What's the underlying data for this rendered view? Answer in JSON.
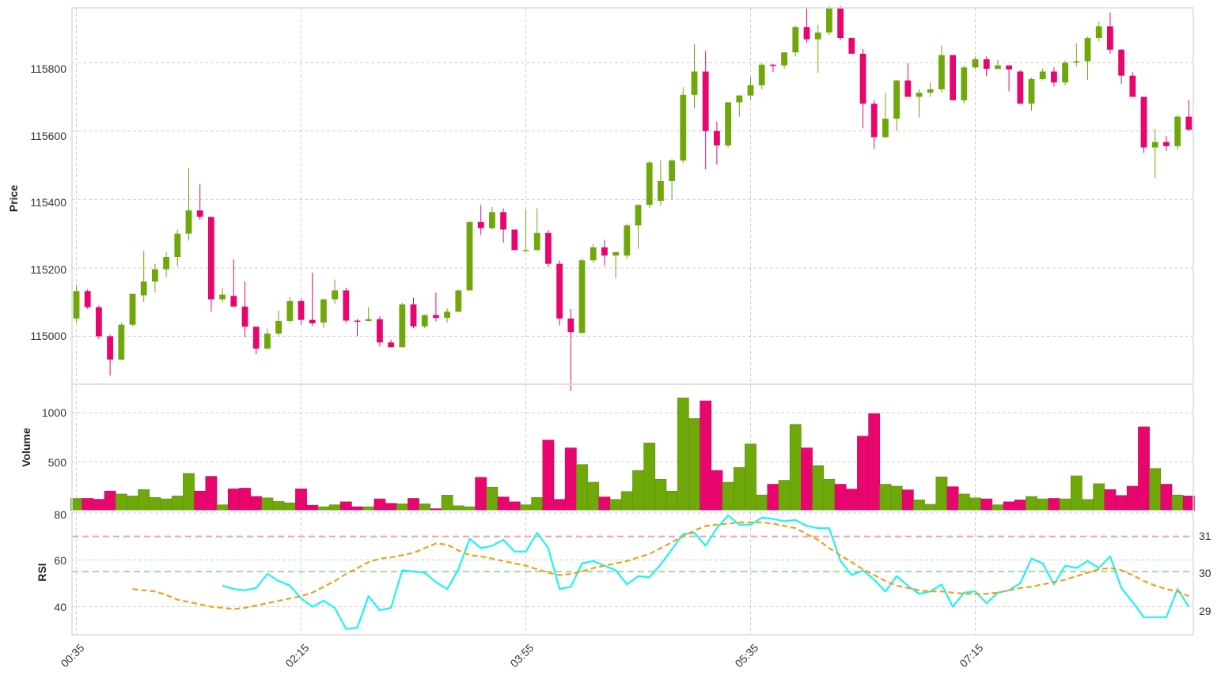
{
  "chart_data": [
    {
      "type": "candlestick",
      "ylabel": "Price",
      "yticks": [
        115000,
        115200,
        115400,
        115600,
        115800
      ],
      "ylim": [
        114860,
        115960
      ],
      "grid": true,
      "up_color": "#6fa80a",
      "down_color": "#e8066e",
      "ohlc": [
        [
          115052,
          115150,
          115040,
          115132
        ],
        [
          115132,
          115138,
          115080,
          115085
        ],
        [
          115085,
          115090,
          114992,
          115000
        ],
        [
          115000,
          115005,
          114885,
          114932
        ],
        [
          114932,
          115040,
          114930,
          115034
        ],
        [
          115034,
          115124,
          115030,
          115124
        ],
        [
          115120,
          115250,
          115100,
          115160
        ],
        [
          115160,
          115212,
          115128,
          115196
        ],
        [
          115196,
          115245,
          115174,
          115232
        ],
        [
          115232,
          115312,
          115205,
          115300
        ],
        [
          115300,
          115492,
          115280,
          115368
        ],
        [
          115368,
          115444,
          115340,
          115349
        ],
        [
          115349,
          115349,
          115072,
          115108
        ],
        [
          115108,
          115142,
          115100,
          115122
        ],
        [
          115118,
          115225,
          115085,
          115087
        ],
        [
          115087,
          115160,
          114998,
          115028
        ],
        [
          115028,
          115028,
          114948,
          114964
        ],
        [
          114964,
          115023,
          114962,
          115008
        ],
        [
          115008,
          115075,
          115002,
          115045
        ],
        [
          115045,
          115114,
          115040,
          115103
        ],
        [
          115103,
          115110,
          115034,
          115048
        ],
        [
          115048,
          115186,
          115030,
          115038
        ],
        [
          115040,
          115110,
          115025,
          115108
        ],
        [
          115108,
          115166,
          115095,
          115134
        ],
        [
          115134,
          115142,
          115040,
          115046
        ],
        [
          115046,
          115050,
          115000,
          115045
        ],
        [
          115045,
          115085,
          115044,
          115050
        ],
        [
          115050,
          115058,
          114970,
          114982
        ],
        [
          114982,
          114990,
          114968,
          114968
        ],
        [
          114968,
          115098,
          114968,
          115093
        ],
        [
          115093,
          115112,
          115024,
          115029
        ],
        [
          115029,
          115064,
          115024,
          115062
        ],
        [
          115062,
          115128,
          115044,
          115054
        ],
        [
          115054,
          115082,
          115040,
          115072
        ],
        [
          115072,
          115136,
          115070,
          115134
        ],
        [
          115134,
          115336,
          115134,
          115334
        ],
        [
          115334,
          115384,
          115296,
          115316
        ],
        [
          115316,
          115378,
          115312,
          115363
        ],
        [
          115363,
          115374,
          115274,
          115312
        ],
        [
          115312,
          115312,
          115252,
          115252
        ],
        [
          115252,
          115370,
          115250,
          115252
        ],
        [
          115252,
          115374,
          115250,
          115302
        ],
        [
          115302,
          115310,
          115202,
          115212
        ],
        [
          115212,
          115222,
          115032,
          115052
        ],
        [
          115052,
          115080,
          114840,
          115012
        ],
        [
          115010,
          115228,
          115008,
          115222
        ],
        [
          115222,
          115270,
          115214,
          115260
        ],
        [
          115260,
          115282,
          115206,
          115236
        ],
        [
          115236,
          115246,
          115170,
          115246
        ],
        [
          115236,
          115330,
          115226,
          115324
        ],
        [
          115324,
          115386,
          115256,
          115384
        ],
        [
          115384,
          115512,
          115376,
          115508
        ],
        [
          115396,
          115514,
          115382,
          115454
        ],
        [
          115454,
          115518,
          115400,
          115514
        ],
        [
          115514,
          115728,
          115506,
          115706
        ],
        [
          115706,
          115854,
          115666,
          115774
        ],
        [
          115774,
          115834,
          115488,
          115600
        ],
        [
          115600,
          115628,
          115502,
          115558
        ],
        [
          115558,
          115684,
          115552,
          115684
        ],
        [
          115684,
          115702,
          115642,
          115704
        ],
        [
          115704,
          115758,
          115690,
          115734
        ],
        [
          115734,
          115798,
          115722,
          115794
        ],
        [
          115794,
          115796,
          115772,
          115792
        ],
        [
          115792,
          115830,
          115782,
          115830
        ],
        [
          115830,
          115908,
          115818,
          115904
        ],
        [
          115904,
          115962,
          115858,
          115868
        ],
        [
          115868,
          115910,
          115770,
          115888
        ],
        [
          115888,
          115966,
          115880,
          115960
        ],
        [
          115960,
          115966,
          115866,
          115872
        ],
        [
          115872,
          115874,
          115826,
          115826
        ],
        [
          115826,
          115840,
          115608,
          115680
        ],
        [
          115680,
          115690,
          115548,
          115582
        ],
        [
          115582,
          115712,
          115580,
          115636
        ],
        [
          115636,
          115750,
          115600,
          115748
        ],
        [
          115748,
          115798,
          115700,
          115700
        ],
        [
          115700,
          115722,
          115640,
          115712
        ],
        [
          115712,
          115742,
          115700,
          115722
        ],
        [
          115722,
          115850,
          115712,
          115822
        ],
        [
          115822,
          115822,
          115690,
          115690
        ],
        [
          115690,
          115790,
          115680,
          115786
        ],
        [
          115786,
          115818,
          115782,
          115810
        ],
        [
          115810,
          115818,
          115760,
          115782
        ],
        [
          115782,
          115808,
          115782,
          115792
        ],
        [
          115792,
          115788,
          115716,
          115780
        ],
        [
          115774,
          115778,
          115680,
          115680
        ],
        [
          115680,
          115756,
          115660,
          115752
        ],
        [
          115752,
          115784,
          115748,
          115774
        ],
        [
          115774,
          115786,
          115730,
          115742
        ],
        [
          115742,
          115806,
          115734,
          115800
        ],
        [
          115800,
          115856,
          115788,
          115804
        ],
        [
          115804,
          115876,
          115750,
          115872
        ],
        [
          115872,
          115920,
          115862,
          115906
        ],
        [
          115906,
          115946,
          115826,
          115838
        ],
        [
          115838,
          115840,
          115738,
          115762
        ],
        [
          115762,
          115772,
          115700,
          115700
        ],
        [
          115700,
          115700,
          115536,
          115552
        ],
        [
          115552,
          115606,
          115462,
          115568
        ],
        [
          115568,
          115586,
          115542,
          115556
        ],
        [
          115556,
          115648,
          115546,
          115642
        ],
        [
          115642,
          115690,
          115600,
          115604
        ]
      ]
    },
    {
      "type": "bar",
      "ylabel": "Volume",
      "yticks": [
        500,
        1000
      ],
      "ylim": [
        0,
        1290
      ],
      "values": [
        125,
        125,
        116,
        200,
        170,
        150,
        215,
        135,
        120,
        150,
        380,
        200,
        350,
        60,
        222,
        230,
        145,
        130,
        95,
        80,
        222,
        55,
        40,
        60,
        90,
        40,
        40,
        120,
        75,
        70,
        125,
        70,
        20,
        158,
        50,
        40,
        340,
        240,
        140,
        90,
        60,
        135,
        720,
        115,
        640,
        470,
        290,
        140,
        115,
        195,
        410,
        690,
        320,
        200,
        1150,
        940,
        1120,
        410,
        290,
        440,
        680,
        160,
        270,
        310,
        880,
        640,
        460,
        320,
        270,
        220,
        760,
        990,
        270,
        250,
        212,
        110,
        65,
        345,
        244,
        170,
        130,
        120,
        60,
        90,
        110,
        145,
        120,
        125,
        120,
        355,
        115,
        275,
        215,
        155,
        250,
        855,
        430,
        270,
        160,
        150
      ]
    },
    {
      "type": "line",
      "ylabel": "RSI",
      "yticks": [
        40,
        60,
        80
      ],
      "ylim": [
        28,
        81
      ],
      "right_ticks": [
        "31",
        "30",
        "29"
      ],
      "reference_lines": [
        {
          "value": 70,
          "color": "#f4a3a3"
        },
        {
          "value": 55,
          "color": "#a3d9a3"
        }
      ],
      "series": [
        {
          "color": "#1ef2f2",
          "values": [
            49,
            47.5,
            47,
            48,
            54,
            51,
            49,
            43.5,
            40,
            42.5,
            39.5,
            30.5,
            31,
            44.5,
            38.5,
            39.5,
            55.5,
            55,
            54.5,
            50.5,
            47.5,
            56,
            69,
            65,
            66,
            68.5,
            63.5,
            63.5,
            71.5,
            65,
            47.5,
            48.5,
            58.5,
            59.5,
            57.5,
            55.5,
            49.5,
            53,
            52.5,
            58,
            64.5,
            71,
            71.5,
            66,
            73.5,
            79,
            75,
            75,
            78,
            77.5,
            76.5,
            77,
            74.5,
            73.5,
            73.5,
            59.5,
            53.5,
            55.5,
            51.5,
            46.5,
            53,
            49,
            45.5,
            46.5,
            49.5,
            40,
            46,
            46.5,
            41.5,
            46,
            47,
            50,
            60.5,
            58.5,
            49.5,
            57.5,
            56.5,
            59.5,
            56.5,
            61.5,
            48,
            42,
            35.5,
            35.5,
            35.5,
            47.5,
            40
          ]
        },
        {
          "color": "#f0a01a",
          "values": [
            47.5,
            47,
            46.5,
            45,
            43,
            42,
            41,
            40,
            39.5,
            39,
            39.5,
            40.5,
            41.5,
            42.5,
            43.5,
            44.5,
            46,
            48.5,
            51,
            54,
            56.5,
            59,
            60.5,
            61,
            62,
            63,
            65,
            67,
            66.5,
            64,
            62,
            61.5,
            60.5,
            59.5,
            58.5,
            57.5,
            56,
            54.5,
            53.5,
            54,
            55,
            56.5,
            57.5,
            58.5,
            59.5,
            61,
            62.5,
            65,
            67.5,
            70,
            72.5,
            74.5,
            75,
            75.5,
            76,
            76,
            76,
            75.5,
            74.5,
            73.5,
            71,
            68.5,
            65,
            62,
            59,
            56,
            53.5,
            51,
            49,
            48,
            47,
            46.5,
            46.5,
            46,
            45.5,
            45.5,
            45.5,
            46,
            47,
            48,
            48.5,
            49.5,
            50.5,
            51.5,
            53,
            54.5,
            56,
            56.5,
            55.5,
            53.5,
            51,
            49,
            47.5,
            46.5,
            44.5
          ]
        }
      ]
    }
  ],
  "xaxis": {
    "tick_labels": [
      "00:35",
      "02:15",
      "03:55",
      "05:35",
      "07:15"
    ]
  }
}
